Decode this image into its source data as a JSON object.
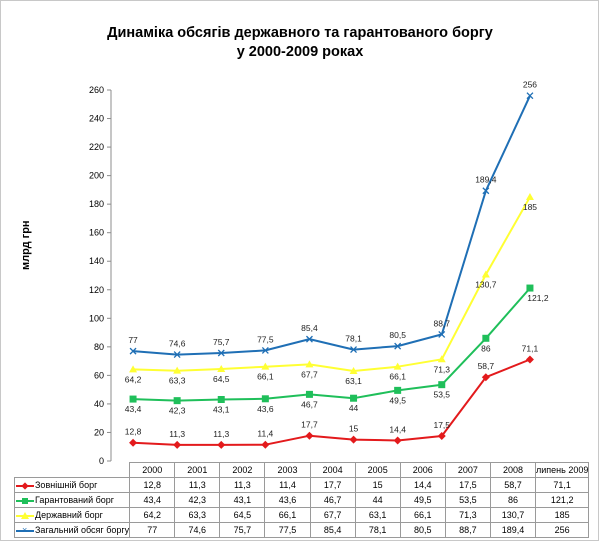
{
  "chart_data": {
    "type": "line",
    "title_line1": "Динаміка обсягів державного та гарантованого боргу",
    "title_line2": "у 2000-2009 роках",
    "ylabel": "млрд грн",
    "ylim": [
      0,
      260
    ],
    "yticks": [
      0,
      20,
      40,
      60,
      80,
      100,
      120,
      140,
      160,
      180,
      200,
      220,
      240,
      260
    ],
    "grid": false,
    "categories": [
      "2000",
      "2001",
      "2002",
      "2003",
      "2004",
      "2005",
      "2006",
      "2007",
      "2008",
      "липень 2009"
    ],
    "series": [
      {
        "name": "Зовнішній борг",
        "color": "#e31a1c",
        "marker": "diamond",
        "values": [
          12.8,
          11.3,
          11.3,
          11.4,
          17.7,
          15,
          14.4,
          17.5,
          58.7,
          71.1
        ],
        "labels": [
          "12,8",
          "11,3",
          "11,3",
          "11,4",
          "17,7",
          "15",
          "14,4",
          "17,5",
          "58,7",
          "71,1"
        ]
      },
      {
        "name": "Гарантований борг",
        "color": "#1fbf5a",
        "marker": "square",
        "values": [
          43.4,
          42.3,
          43.1,
          43.6,
          46.7,
          44,
          49.5,
          53.5,
          86,
          121.2
        ],
        "labels": [
          "43,4",
          "42,3",
          "43,1",
          "43,6",
          "46,7",
          "44",
          "49,5",
          "53,5",
          "86",
          "121,2"
        ]
      },
      {
        "name": "Державний борг",
        "color": "#ffff33",
        "marker": "triangle",
        "values": [
          64.2,
          63.3,
          64.5,
          66.1,
          67.7,
          63.1,
          66.1,
          71.3,
          130.7,
          185
        ],
        "labels": [
          "64,2",
          "63,3",
          "64,5",
          "66,1",
          "67,7",
          "63,1",
          "66,1",
          "71,3",
          "130,7",
          "185"
        ]
      },
      {
        "name": "Загальний обсяг боргу",
        "color": "#1f6fb5",
        "marker": "x",
        "values": [
          77,
          74.6,
          75.7,
          77.5,
          85.4,
          78.1,
          80.5,
          88.7,
          189.4,
          256
        ],
        "labels": [
          "77",
          "74,6",
          "75,7",
          "77,5",
          "85,4",
          "78,1",
          "80,5",
          "88,7",
          "189,4",
          "256"
        ]
      }
    ]
  }
}
